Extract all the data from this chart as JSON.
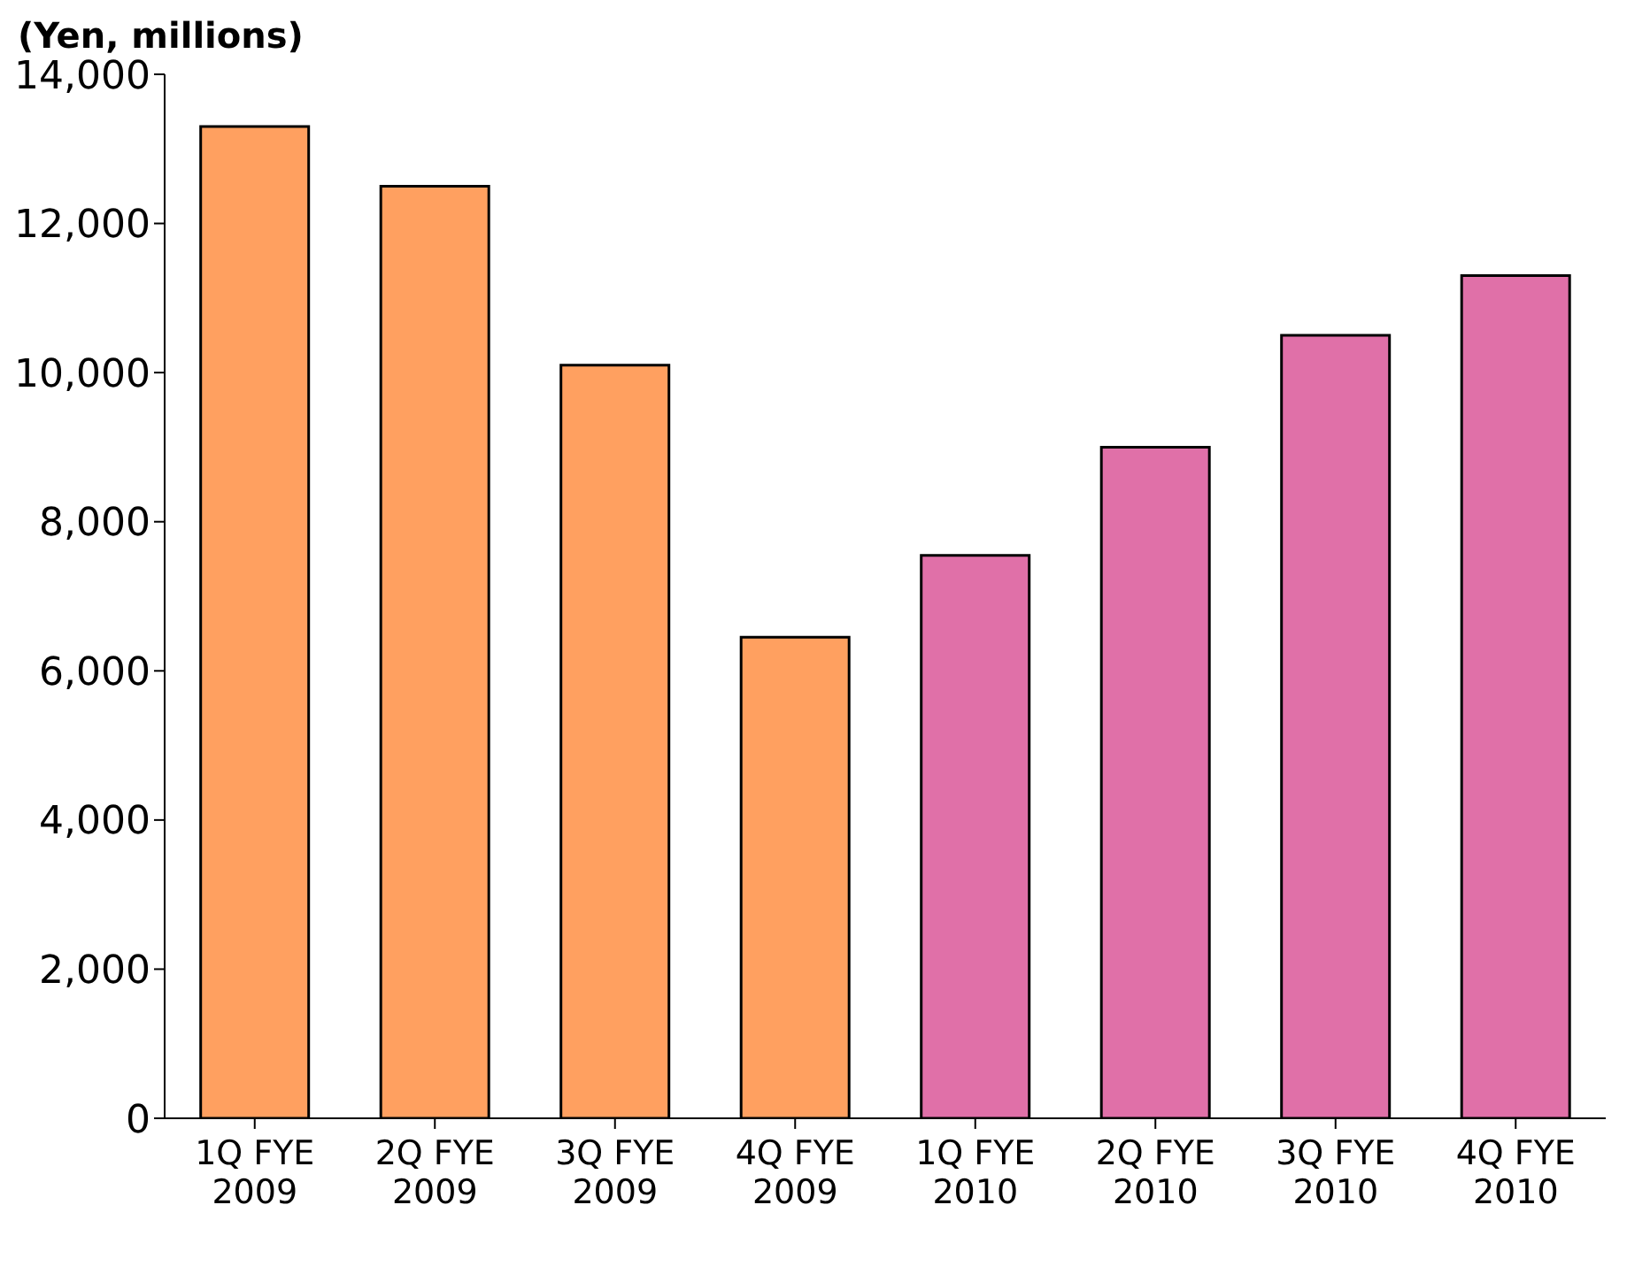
{
  "chart_data": {
    "type": "bar",
    "ylabel": "(Yen, millions)",
    "categories": [
      "1Q FYE 2009",
      "2Q FYE 2009",
      "3Q FYE 2009",
      "4Q FYE 2009",
      "1Q FYE 2010",
      "2Q FYE 2010",
      "3Q FYE 2010",
      "4Q FYE 2010"
    ],
    "values": [
      13300,
      12500,
      10100,
      6450,
      7550,
      9000,
      10500,
      11300
    ],
    "colors": [
      "#ffa060",
      "#ffa060",
      "#ffa060",
      "#ffa060",
      "#e070a8",
      "#e070a8",
      "#e070a8",
      "#e070a8"
    ],
    "ylim": [
      0,
      14000
    ],
    "yticks": [
      {
        "value": 0,
        "label": "0"
      },
      {
        "value": 2000,
        "label": "2,000"
      },
      {
        "value": 4000,
        "label": "4,000"
      },
      {
        "value": 6000,
        "label": "6,000"
      },
      {
        "value": 8000,
        "label": "8,000"
      },
      {
        "value": 10000,
        "label": "10,000"
      },
      {
        "value": 12000,
        "label": "12,000"
      },
      {
        "value": 14000,
        "label": "14,000"
      }
    ],
    "grid": false,
    "legend": false
  }
}
